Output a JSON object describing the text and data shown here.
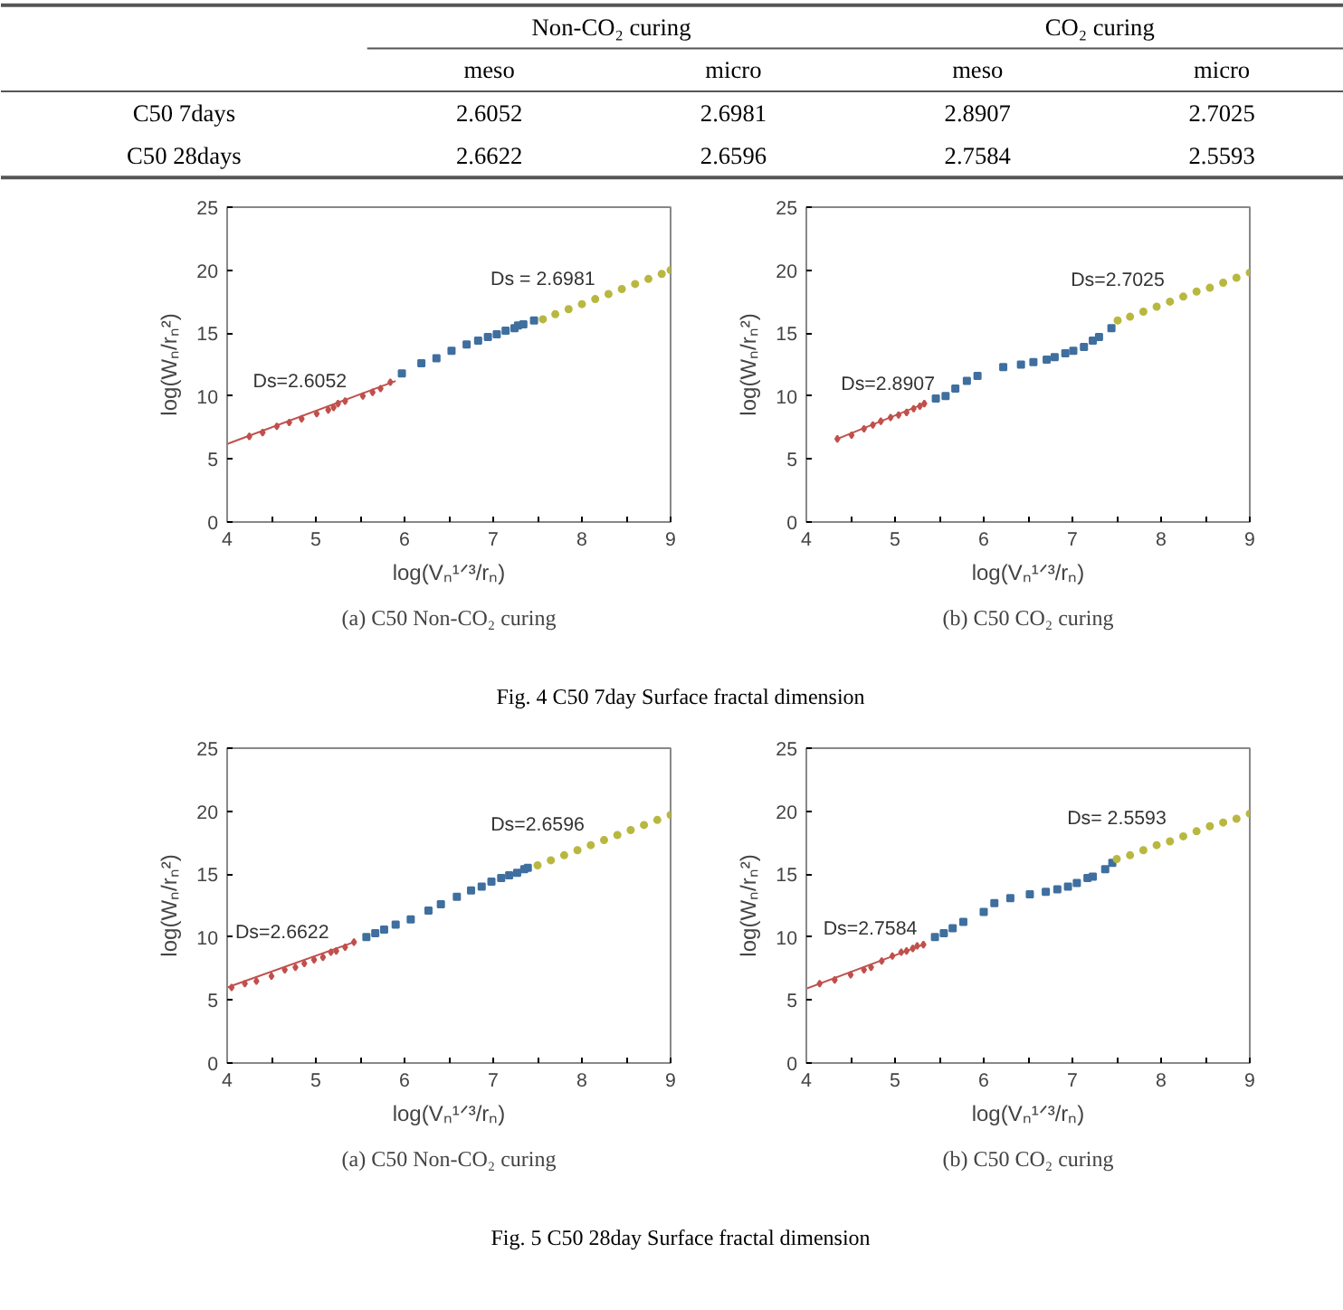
{
  "chart_data": [
    {
      "type": "heatmap",
      "categories": [
        "meso",
        "micro",
        "meso",
        "micro"
      ],
      "y_categories": [
        "C50 7days",
        "C50 28days"
      ],
      "cells": [
        [
          2.6052,
          2.6981,
          2.8907,
          2.7025
        ],
        [
          2.6622,
          2.6596,
          2.7584,
          2.5593
        ]
      ],
      "data_labels": true,
      "annotations": [
        "Non-CO₂ curing",
        "CO₂ curing"
      ]
    },
    {
      "type": "scatter",
      "xlabel": "log(Vₙ¹ᐟ³/rₙ)",
      "ylabel": "log(Wₙ/rₙ²)",
      "xlim": [
        4,
        9
      ],
      "ylim": [
        0,
        25
      ],
      "xticks": [
        4,
        {
          "value": 4.5,
          "label": null
        },
        5,
        {
          "value": 5.5,
          "label": null
        },
        6,
        {
          "value": 6.5,
          "label": null
        },
        7,
        {
          "value": 7.5,
          "label": null
        },
        8,
        {
          "value": 8.5,
          "label": null
        },
        9
      ],
      "yticks": [
        0,
        5,
        10,
        15,
        20,
        25
      ],
      "grid": false,
      "series": [
        {
          "type": "line",
          "color": "#c0504d",
          "x": [
            4,
            5.9
          ],
          "values": [
            6.2,
            11.2
          ]
        },
        {
          "color": "#c0504d",
          "marker": "diamond",
          "x": [
            4.25,
            4.4,
            4.56,
            4.7,
            4.84,
            5.01,
            5.14,
            5.2,
            5.25,
            5.33,
            5.53,
            5.64,
            5.73,
            5.84
          ],
          "values": [
            6.8,
            7.1,
            7.6,
            7.9,
            8.2,
            8.6,
            8.9,
            9.1,
            9.4,
            9.6,
            10.0,
            10.3,
            10.6,
            11.1
          ]
        },
        {
          "color": "#3f6f9f",
          "marker": "square",
          "x": [
            5.97,
            6.19,
            6.36,
            6.53,
            6.7,
            6.83,
            6.94,
            7.04,
            7.14,
            7.24,
            7.28,
            7.34,
            7.46
          ],
          "values": [
            11.8,
            12.6,
            13.0,
            13.6,
            14.1,
            14.4,
            14.7,
            14.9,
            15.2,
            15.4,
            15.6,
            15.7,
            16.0
          ]
        },
        {
          "color": "#b8b840",
          "marker": "circle",
          "x": [
            7.56,
            7.7,
            7.85,
            8.0,
            8.15,
            8.3,
            8.45,
            8.6,
            8.75,
            8.9,
            9.0
          ],
          "values": [
            16.1,
            16.5,
            16.9,
            17.3,
            17.7,
            18.1,
            18.5,
            18.9,
            19.3,
            19.7,
            20.0
          ]
        }
      ],
      "annotations": [
        "Ds=2.6052",
        "Ds = 2.6981",
        "(a) C50 Non-CO₂ curing",
        "Fig. 4 C50 7day Surface fractal dimension"
      ]
    },
    {
      "type": "scatter",
      "xlabel": "log(Vₙ¹ᐟ³/rₙ)",
      "ylabel": "log(Wₙ/rₙ²)",
      "xlim": [
        4,
        9
      ],
      "ylim": [
        0,
        25
      ],
      "xticks": [
        4,
        {
          "value": 4.5,
          "label": null
        },
        5,
        {
          "value": 5.5,
          "label": null
        },
        6,
        {
          "value": 6.5,
          "label": null
        },
        7,
        {
          "value": 7.5,
          "label": null
        },
        8,
        {
          "value": 8.5,
          "label": null
        },
        9
      ],
      "yticks": [
        0,
        5,
        10,
        15,
        20,
        25
      ],
      "grid": false,
      "series": [
        {
          "type": "line",
          "color": "#c0504d",
          "x": [
            4.35,
            5.33
          ],
          "values": [
            6.6,
            9.4
          ]
        },
        {
          "color": "#c0504d",
          "marker": "diamond",
          "x": [
            4.35,
            4.51,
            4.65,
            4.75,
            4.84,
            4.95,
            5.04,
            5.13,
            5.21,
            5.28,
            5.33
          ],
          "values": [
            6.6,
            6.9,
            7.4,
            7.7,
            8.0,
            8.3,
            8.5,
            8.7,
            9.0,
            9.2,
            9.4
          ]
        },
        {
          "color": "#3f6f9f",
          "marker": "square",
          "x": [
            5.46,
            5.57,
            5.68,
            5.81,
            5.93,
            6.22,
            6.42,
            6.56,
            6.71,
            6.8,
            6.92,
            7.01,
            7.13,
            7.23,
            7.3,
            7.44
          ],
          "values": [
            9.8,
            10.0,
            10.6,
            11.2,
            11.6,
            12.3,
            12.5,
            12.7,
            12.9,
            13.1,
            13.4,
            13.6,
            13.9,
            14.4,
            14.7,
            15.4
          ]
        },
        {
          "color": "#b8b840",
          "marker": "circle",
          "x": [
            7.51,
            7.65,
            7.8,
            7.95,
            8.1,
            8.25,
            8.4,
            8.55,
            8.7,
            8.85,
            9.0
          ],
          "values": [
            16.0,
            16.3,
            16.7,
            17.1,
            17.5,
            17.9,
            18.3,
            18.6,
            19.0,
            19.4,
            19.8
          ]
        }
      ],
      "annotations": [
        "Ds=2.8907",
        "Ds=2.7025",
        "(b) C50 CO₂ curing"
      ]
    },
    {
      "type": "scatter",
      "xlabel": "log(Vₙ¹ᐟ³/rₙ)",
      "ylabel": "log(Wₙ/rₙ²)",
      "xlim": [
        4,
        9
      ],
      "ylim": [
        0,
        25
      ],
      "xticks": [
        4,
        {
          "value": 4.5,
          "label": null
        },
        5,
        {
          "value": 5.5,
          "label": null
        },
        6,
        {
          "value": 6.5,
          "label": null
        },
        7,
        {
          "value": 7.5,
          "label": null
        },
        8,
        {
          "value": 8.5,
          "label": null
        },
        9
      ],
      "yticks": [
        0,
        5,
        10,
        15,
        20,
        25
      ],
      "grid": false,
      "series": [
        {
          "type": "line",
          "color": "#c0504d",
          "x": [
            4,
            5.43
          ],
          "values": [
            6.0,
            9.6
          ]
        },
        {
          "color": "#c0504d",
          "marker": "diamond",
          "x": [
            4.05,
            4.2,
            4.33,
            4.5,
            4.65,
            4.77,
            4.87,
            4.98,
            5.08,
            5.17,
            5.23,
            5.33,
            5.43
          ],
          "values": [
            6.0,
            6.3,
            6.5,
            6.9,
            7.4,
            7.6,
            7.9,
            8.2,
            8.4,
            8.8,
            8.9,
            9.2,
            9.6
          ]
        },
        {
          "color": "#3f6f9f",
          "marker": "square",
          "x": [
            5.57,
            5.67,
            5.77,
            5.9,
            6.07,
            6.27,
            6.41,
            6.59,
            6.75,
            6.87,
            6.98,
            7.09,
            7.18,
            7.27,
            7.35,
            7.39
          ],
          "values": [
            10.0,
            10.3,
            10.6,
            11.0,
            11.4,
            12.1,
            12.6,
            13.2,
            13.7,
            14.0,
            14.4,
            14.7,
            14.9,
            15.1,
            15.4,
            15.5
          ]
        },
        {
          "color": "#b8b840",
          "marker": "circle",
          "x": [
            7.5,
            7.65,
            7.8,
            7.95,
            8.1,
            8.25,
            8.4,
            8.55,
            8.7,
            8.85,
            9.0
          ],
          "values": [
            15.7,
            16.1,
            16.5,
            16.9,
            17.3,
            17.7,
            18.1,
            18.5,
            18.9,
            19.3,
            19.7
          ]
        }
      ],
      "annotations": [
        "Ds=2.6622",
        "Ds=2.6596",
        "(a) C50 Non-CO₂ curing",
        "Fig. 5 C50 28day Surface fractal dimension"
      ]
    },
    {
      "type": "scatter",
      "xlabel": "log(Vₙ¹ᐟ³/rₙ)",
      "ylabel": "log(Wₙ/rₙ²)",
      "xlim": [
        4,
        9
      ],
      "ylim": [
        0,
        25
      ],
      "xticks": [
        4,
        {
          "value": 4.5,
          "label": null
        },
        5,
        {
          "value": 5.5,
          "label": null
        },
        6,
        {
          "value": 6.5,
          "label": null
        },
        7,
        {
          "value": 7.5,
          "label": null
        },
        8,
        {
          "value": 8.5,
          "label": null
        },
        9
      ],
      "yticks": [
        0,
        5,
        10,
        15,
        20,
        25
      ],
      "grid": false,
      "series": [
        {
          "type": "line",
          "color": "#c0504d",
          "x": [
            4,
            5.32
          ],
          "values": [
            5.9,
            9.4
          ]
        },
        {
          "color": "#c0504d",
          "marker": "diamond",
          "x": [
            4.15,
            4.32,
            4.5,
            4.65,
            4.73,
            4.85,
            4.97,
            5.07,
            5.13,
            5.2,
            5.25,
            5.32
          ],
          "values": [
            6.3,
            6.6,
            7.0,
            7.4,
            7.6,
            8.1,
            8.5,
            8.8,
            8.9,
            9.1,
            9.3,
            9.4
          ]
        },
        {
          "color": "#3f6f9f",
          "marker": "square",
          "x": [
            5.45,
            5.55,
            5.65,
            5.77,
            6.0,
            6.12,
            6.3,
            6.52,
            6.7,
            6.83,
            6.95,
            7.05,
            7.17,
            7.23,
            7.37,
            7.45
          ],
          "values": [
            10.0,
            10.3,
            10.7,
            11.2,
            12.0,
            12.7,
            13.1,
            13.4,
            13.6,
            13.8,
            14.0,
            14.3,
            14.7,
            14.8,
            15.4,
            15.9
          ]
        },
        {
          "color": "#b8b840",
          "marker": "circle",
          "x": [
            7.5,
            7.65,
            7.8,
            7.95,
            8.1,
            8.25,
            8.4,
            8.55,
            8.7,
            8.85,
            9.0
          ],
          "values": [
            16.2,
            16.5,
            16.9,
            17.3,
            17.6,
            18.0,
            18.4,
            18.8,
            19.1,
            19.4,
            19.8
          ]
        }
      ],
      "annotations": [
        "Ds=2.7584",
        "Ds= 2.5593",
        "(b) C50 CO₂ curing"
      ]
    }
  ]
}
